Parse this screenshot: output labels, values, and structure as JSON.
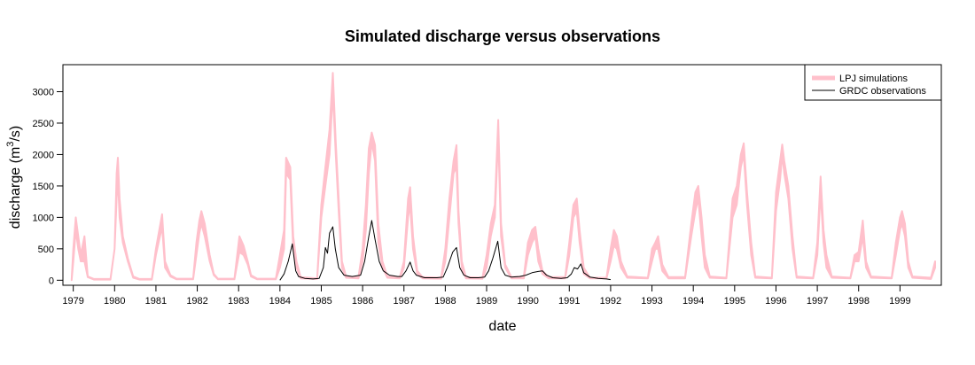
{
  "chart_data": {
    "type": "line",
    "title": "Simulated discharge versus observations",
    "xlabel": "date",
    "ylabel": "discharge (m",
    "ylabel_sup": "3",
    "ylabel_tail": "/s)",
    "xlim": [
      1978.75,
      2000.0
    ],
    "ylim": [
      -80,
      3430
    ],
    "x_ticks": [
      "1979",
      "1980",
      "1981",
      "1982",
      "1983",
      "1984",
      "1985",
      "1986",
      "1987",
      "1988",
      "1989",
      "1990",
      "1991",
      "1992",
      "1993",
      "1994",
      "1995",
      "1996",
      "1997",
      "1998",
      "1999"
    ],
    "y_ticks": [
      "0",
      "500",
      "1000",
      "1500",
      "2000",
      "2500",
      "3000"
    ],
    "legend_position": "top-right",
    "grid": false,
    "series": [
      {
        "name": "LPJ simulations",
        "color": "#FFC0CB",
        "style": "band",
        "points": [
          [
            1978.96,
            0,
            0
          ],
          [
            1979.0,
            300,
            500
          ],
          [
            1979.06,
            800,
            1000
          ],
          [
            1979.12,
            500,
            700
          ],
          [
            1979.18,
            300,
            400
          ],
          [
            1979.27,
            300,
            700
          ],
          [
            1979.35,
            50,
            60
          ],
          [
            1979.5,
            10,
            20
          ],
          [
            1979.9,
            10,
            20
          ],
          [
            1980.0,
            500,
            500
          ],
          [
            1980.05,
            1300,
            1700
          ],
          [
            1980.08,
            1650,
            1950
          ],
          [
            1980.12,
            1000,
            1300
          ],
          [
            1980.2,
            600,
            700
          ],
          [
            1980.32,
            300,
            350
          ],
          [
            1980.45,
            40,
            60
          ],
          [
            1980.6,
            10,
            20
          ],
          [
            1980.9,
            10,
            20
          ],
          [
            1981.0,
            400,
            500
          ],
          [
            1981.08,
            650,
            800
          ],
          [
            1981.15,
            850,
            1050
          ],
          [
            1981.22,
            200,
            300
          ],
          [
            1981.35,
            60,
            80
          ],
          [
            1981.5,
            15,
            25
          ],
          [
            1981.9,
            15,
            25
          ],
          [
            1981.98,
            400,
            600
          ],
          [
            1982.05,
            750,
            950
          ],
          [
            1982.1,
            900,
            1100
          ],
          [
            1982.18,
            700,
            900
          ],
          [
            1982.3,
            300,
            400
          ],
          [
            1982.4,
            80,
            100
          ],
          [
            1982.5,
            15,
            25
          ],
          [
            1982.9,
            15,
            25
          ],
          [
            1983.02,
            450,
            700
          ],
          [
            1983.12,
            400,
            550
          ],
          [
            1983.22,
            250,
            300
          ],
          [
            1983.3,
            60,
            80
          ],
          [
            1983.45,
            15,
            25
          ],
          [
            1983.9,
            15,
            25
          ],
          [
            1984.0,
            200,
            400
          ],
          [
            1984.1,
            500,
            800
          ],
          [
            1984.15,
            1700,
            1950
          ],
          [
            1984.25,
            1600,
            1800
          ],
          [
            1984.32,
            500,
            700
          ],
          [
            1984.4,
            200,
            300
          ],
          [
            1984.5,
            30,
            50
          ],
          [
            1984.9,
            20,
            30
          ],
          [
            1985.0,
            1000,
            1200
          ],
          [
            1985.1,
            1500,
            1800
          ],
          [
            1985.2,
            2000,
            2400
          ],
          [
            1985.28,
            3000,
            3300
          ],
          [
            1985.35,
            2000,
            2200
          ],
          [
            1985.42,
            1100,
            1300
          ],
          [
            1985.5,
            200,
            300
          ],
          [
            1985.6,
            40,
            60
          ],
          [
            1985.9,
            30,
            50
          ],
          [
            1986.0,
            300,
            500
          ],
          [
            1986.08,
            800,
            1200
          ],
          [
            1986.15,
            1700,
            2100
          ],
          [
            1986.22,
            2200,
            2350
          ],
          [
            1986.3,
            1900,
            2150
          ],
          [
            1986.38,
            600,
            900
          ],
          [
            1986.48,
            200,
            300
          ],
          [
            1986.6,
            40,
            60
          ],
          [
            1986.9,
            30,
            50
          ],
          [
            1987.0,
            200,
            300
          ],
          [
            1987.1,
            1000,
            1300
          ],
          [
            1987.15,
            1200,
            1480
          ],
          [
            1987.22,
            500,
            700
          ],
          [
            1987.32,
            100,
            150
          ],
          [
            1987.45,
            30,
            50
          ],
          [
            1987.9,
            25,
            40
          ],
          [
            1988.0,
            300,
            500
          ],
          [
            1988.1,
            1000,
            1300
          ],
          [
            1988.2,
            1700,
            1900
          ],
          [
            1988.27,
            1800,
            2150
          ],
          [
            1988.32,
            900,
            1100
          ],
          [
            1988.4,
            200,
            300
          ],
          [
            1988.5,
            30,
            50
          ],
          [
            1988.9,
            25,
            40
          ],
          [
            1989.0,
            200,
            400
          ],
          [
            1989.1,
            700,
            900
          ],
          [
            1989.2,
            1000,
            1200
          ],
          [
            1989.28,
            2300,
            2550
          ],
          [
            1989.35,
            700,
            900
          ],
          [
            1989.45,
            200,
            250
          ],
          [
            1989.6,
            30,
            50
          ],
          [
            1989.9,
            30,
            60
          ],
          [
            1990.0,
            400,
            600
          ],
          [
            1990.1,
            600,
            800
          ],
          [
            1990.18,
            700,
            850
          ],
          [
            1990.25,
            300,
            500
          ],
          [
            1990.35,
            100,
            150
          ],
          [
            1990.5,
            30,
            50
          ],
          [
            1990.9,
            30,
            50
          ],
          [
            1991.0,
            400,
            600
          ],
          [
            1991.1,
            1000,
            1200
          ],
          [
            1991.18,
            1100,
            1300
          ],
          [
            1991.25,
            600,
            800
          ],
          [
            1991.35,
            100,
            200
          ],
          [
            1991.5,
            30,
            40
          ],
          [
            1991.9,
            30,
            40
          ],
          [
            1992.0,
            300,
            500
          ],
          [
            1992.08,
            550,
            800
          ],
          [
            1992.15,
            500,
            700
          ],
          [
            1992.25,
            200,
            300
          ],
          [
            1992.4,
            40,
            60
          ],
          [
            1992.9,
            30,
            40
          ],
          [
            1993.0,
            300,
            500
          ],
          [
            1993.08,
            500,
            600
          ],
          [
            1993.15,
            500,
            700
          ],
          [
            1993.25,
            150,
            250
          ],
          [
            1993.4,
            30,
            50
          ],
          [
            1993.8,
            30,
            50
          ],
          [
            1993.95,
            700,
            900
          ],
          [
            1994.05,
            1100,
            1400
          ],
          [
            1994.12,
            1300,
            1500
          ],
          [
            1994.2,
            700,
            1000
          ],
          [
            1994.28,
            200,
            400
          ],
          [
            1994.4,
            40,
            60
          ],
          [
            1994.8,
            30,
            40
          ],
          [
            1994.95,
            1000,
            1300
          ],
          [
            1995.05,
            1200,
            1500
          ],
          [
            1995.15,
            1800,
            2000
          ],
          [
            1995.22,
            2000,
            2180
          ],
          [
            1995.3,
            1200,
            1400
          ],
          [
            1995.4,
            400,
            600
          ],
          [
            1995.5,
            40,
            60
          ],
          [
            1995.9,
            30,
            40
          ],
          [
            1996.0,
            1100,
            1400
          ],
          [
            1996.1,
            1600,
            1900
          ],
          [
            1996.15,
            2000,
            2160
          ],
          [
            1996.2,
            1700,
            1900
          ],
          [
            1996.3,
            1300,
            1500
          ],
          [
            1996.4,
            500,
            700
          ],
          [
            1996.5,
            40,
            60
          ],
          [
            1996.9,
            30,
            40
          ],
          [
            1997.0,
            400,
            600
          ],
          [
            1997.08,
            1400,
            1650
          ],
          [
            1997.15,
            600,
            800
          ],
          [
            1997.22,
            200,
            400
          ],
          [
            1997.35,
            40,
            60
          ],
          [
            1997.8,
            30,
            40
          ],
          [
            1997.9,
            300,
            400
          ],
          [
            1998.0,
            300,
            450
          ],
          [
            1998.1,
            700,
            950
          ],
          [
            1998.18,
            200,
            300
          ],
          [
            1998.3,
            40,
            60
          ],
          [
            1998.8,
            30,
            40
          ],
          [
            1998.9,
            400,
            600
          ],
          [
            1999.0,
            800,
            1000
          ],
          [
            1999.05,
            900,
            1100
          ],
          [
            1999.12,
            700,
            900
          ],
          [
            1999.2,
            200,
            300
          ],
          [
            1999.3,
            40,
            60
          ],
          [
            1999.75,
            20,
            40
          ],
          [
            1999.85,
            200,
            300
          ]
        ]
      },
      {
        "name": "GRDC observations",
        "color": "#000000",
        "style": "line",
        "points": [
          [
            1984.0,
            0
          ],
          [
            1984.1,
            100
          ],
          [
            1984.2,
            300
          ],
          [
            1984.3,
            580
          ],
          [
            1984.38,
            150
          ],
          [
            1984.45,
            60
          ],
          [
            1984.6,
            30
          ],
          [
            1984.8,
            20
          ],
          [
            1984.95,
            30
          ],
          [
            1985.05,
            200
          ],
          [
            1985.1,
            520
          ],
          [
            1985.15,
            430
          ],
          [
            1985.2,
            750
          ],
          [
            1985.28,
            850
          ],
          [
            1985.34,
            500
          ],
          [
            1985.42,
            200
          ],
          [
            1985.55,
            80
          ],
          [
            1985.75,
            60
          ],
          [
            1985.95,
            80
          ],
          [
            1986.05,
            300
          ],
          [
            1986.15,
            700
          ],
          [
            1986.22,
            950
          ],
          [
            1986.3,
            650
          ],
          [
            1986.4,
            300
          ],
          [
            1986.5,
            150
          ],
          [
            1986.65,
            80
          ],
          [
            1986.85,
            60
          ],
          [
            1986.95,
            60
          ],
          [
            1987.05,
            150
          ],
          [
            1987.15,
            290
          ],
          [
            1987.22,
            150
          ],
          [
            1987.3,
            80
          ],
          [
            1987.5,
            40
          ],
          [
            1987.8,
            40
          ],
          [
            1987.95,
            50
          ],
          [
            1988.05,
            200
          ],
          [
            1988.18,
            450
          ],
          [
            1988.27,
            520
          ],
          [
            1988.35,
            200
          ],
          [
            1988.45,
            80
          ],
          [
            1988.6,
            40
          ],
          [
            1988.8,
            40
          ],
          [
            1988.95,
            50
          ],
          [
            1989.05,
            150
          ],
          [
            1989.15,
            350
          ],
          [
            1989.27,
            620
          ],
          [
            1989.35,
            200
          ],
          [
            1989.45,
            80
          ],
          [
            1989.6,
            50
          ],
          [
            1989.8,
            60
          ],
          [
            1989.95,
            80
          ],
          [
            1990.1,
            120
          ],
          [
            1990.25,
            140
          ],
          [
            1990.35,
            150
          ],
          [
            1990.45,
            80
          ],
          [
            1990.6,
            40
          ],
          [
            1990.8,
            30
          ],
          [
            1990.95,
            40
          ],
          [
            1991.05,
            100
          ],
          [
            1991.12,
            200
          ],
          [
            1991.2,
            180
          ],
          [
            1991.28,
            260
          ],
          [
            1991.35,
            120
          ],
          [
            1991.5,
            50
          ],
          [
            1991.7,
            30
          ],
          [
            1991.9,
            20
          ],
          [
            1992.0,
            10
          ]
        ]
      }
    ]
  }
}
